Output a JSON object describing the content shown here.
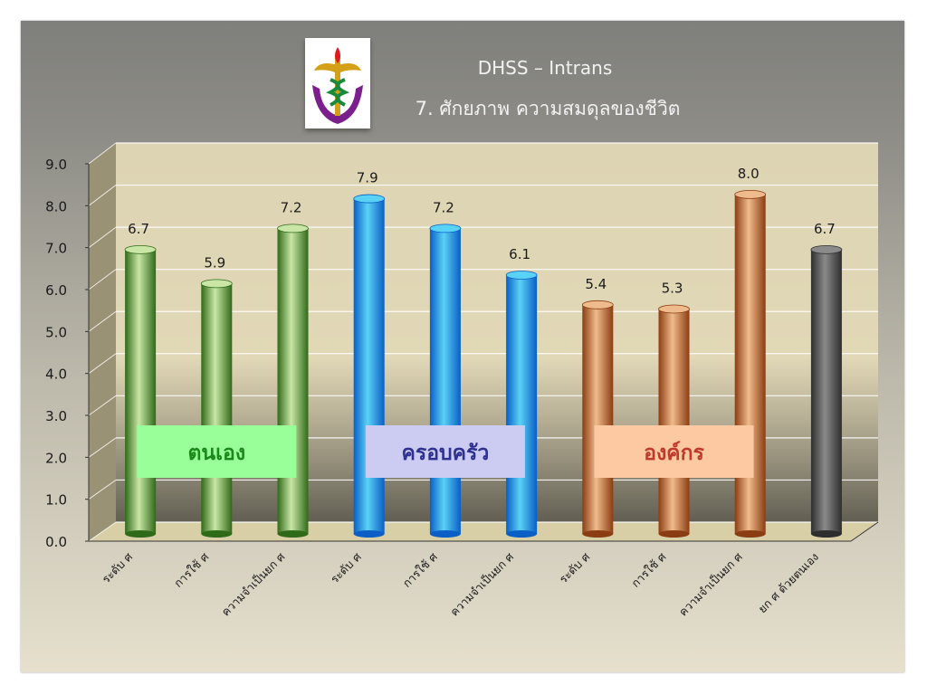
{
  "header": {
    "title": "DHSS – Intrans",
    "subtitle": "7. ศักยภาพ ความสมดุลของชีวิต"
  },
  "chart_data": {
    "type": "bar",
    "categories": [
      "ระดับ ศ",
      "การใช้ ศ",
      "ความจำเป็นยก ศ",
      "ระดับ ศ",
      "การใช้ ศ",
      "ความจำเป็นยก ศ",
      "ระดับ ศ",
      "การใช้ ศ",
      "ความจำเป็นยก ศ",
      "ยก ศ ด้วยตนเอง"
    ],
    "values": [
      6.7,
      5.9,
      7.2,
      7.9,
      7.2,
      6.1,
      5.4,
      5.3,
      8.0,
      6.7
    ],
    "value_labels": [
      "6.7",
      "5.9",
      "7.2",
      "7.9",
      "7.2",
      "6.1",
      "5.4",
      "5.3",
      "8.0",
      "6.7"
    ],
    "ylim": [
      0,
      9
    ],
    "yticks": [
      "0.0",
      "1.0",
      "2.0",
      "3.0",
      "4.0",
      "5.0",
      "6.0",
      "7.0",
      "8.0",
      "9.0"
    ],
    "grid": true,
    "groups": [
      {
        "label": "ตนเอง",
        "color": "#1a8a1a",
        "box": "#99ff99",
        "bar_dark": "#2f6a18",
        "bar_light": "#c9e6a6",
        "members": [
          0,
          1,
          2
        ]
      },
      {
        "label": "ครอบครัว",
        "color": "#2e3190",
        "box": "#ccccf2",
        "bar_dark": "#0a5ec6",
        "bar_light": "#5ad2f5",
        "members": [
          3,
          4,
          5
        ]
      },
      {
        "label": "องค์กร",
        "color": "#c0392b",
        "box": "#fcc9a2",
        "bar_dark": "#8a3d12",
        "bar_light": "#f0bb8c",
        "members": [
          6,
          7,
          8
        ]
      },
      {
        "label": "",
        "color": "#333333",
        "box": "",
        "bar_dark": "#2e2e2e",
        "bar_light": "#8a8a8a",
        "members": [
          9
        ]
      }
    ]
  }
}
